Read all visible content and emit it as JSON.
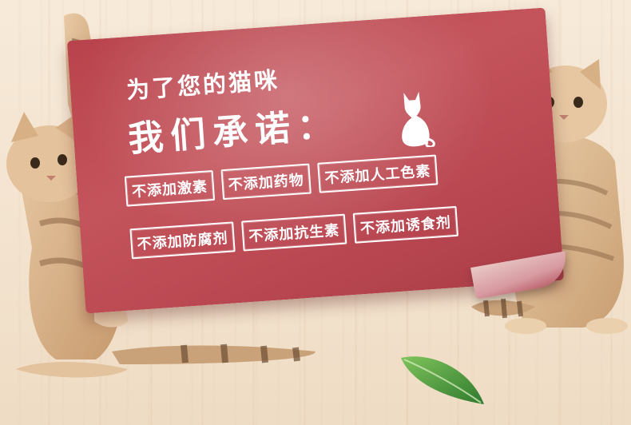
{
  "headline": {
    "line1": "为了您的猫咪",
    "line2": "我们承诺："
  },
  "tags": [
    [
      "不添加激素",
      "不添加药物",
      "不添加人工色素"
    ],
    [
      "不添加防腐剂",
      "不添加抗生素",
      "不添加诱食剂"
    ]
  ],
  "icons": {
    "sign_icon": "cat-silhouette-icon",
    "leaf": "leaf-icon"
  },
  "colors": {
    "sign": "#b9434c",
    "background": "#f4e5d2",
    "text": "#ffffff",
    "leaf": "#4c9a3c"
  }
}
